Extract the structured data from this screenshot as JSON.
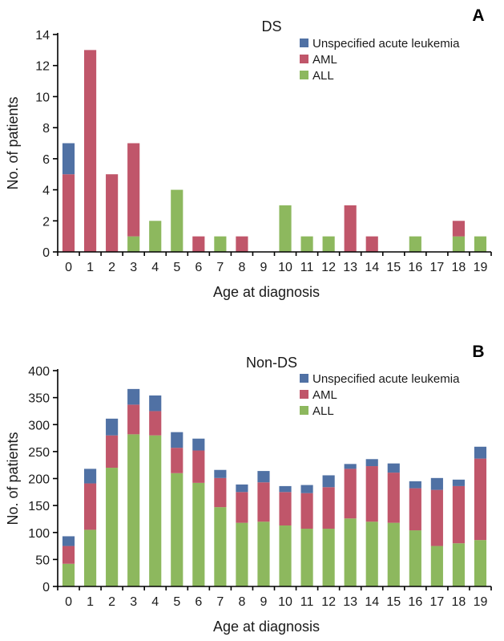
{
  "chart_data": [
    {
      "type": "bar",
      "stacked": true,
      "panel_label": "A",
      "title": "DS",
      "xlabel": "Age at diagnosis",
      "ylabel": "No. of patients",
      "ylim": [
        0,
        14
      ],
      "yticks": [
        0,
        2,
        4,
        6,
        8,
        10,
        12,
        14
      ],
      "grid": false,
      "legend_position": "top-right",
      "categories": [
        "0",
        "1",
        "2",
        "3",
        "4",
        "5",
        "6",
        "7",
        "8",
        "9",
        "10",
        "11",
        "12",
        "13",
        "14",
        "15",
        "16",
        "17",
        "18",
        "19"
      ],
      "series": [
        {
          "name": "ALL",
          "color": "#8db85e",
          "values": [
            0,
            0,
            0,
            1,
            2,
            4,
            0,
            1,
            0,
            0,
            3,
            1,
            1,
            0,
            0,
            0,
            1,
            0,
            1,
            1
          ]
        },
        {
          "name": "AML",
          "color": "#c0566a",
          "values": [
            5,
            13,
            5,
            6,
            0,
            0,
            1,
            0,
            1,
            0,
            0,
            0,
            0,
            3,
            1,
            0,
            0,
            0,
            1,
            0
          ]
        },
        {
          "name": "Unspecified acute leukemia",
          "color": "#5071a4",
          "values": [
            2,
            0,
            0,
            0,
            0,
            0,
            0,
            0,
            0,
            0,
            0,
            0,
            0,
            0,
            0,
            0,
            0,
            0,
            0,
            0
          ]
        }
      ]
    },
    {
      "type": "bar",
      "stacked": true,
      "panel_label": "B",
      "title": "Non-DS",
      "xlabel": "Age at diagnosis",
      "ylabel": "No. of patients",
      "ylim": [
        0,
        400
      ],
      "yticks": [
        0,
        50,
        100,
        150,
        200,
        250,
        300,
        350,
        400
      ],
      "grid": false,
      "legend_position": "top-right",
      "categories": [
        "0",
        "1",
        "2",
        "3",
        "4",
        "5",
        "6",
        "7",
        "8",
        "9",
        "10",
        "11",
        "12",
        "13",
        "14",
        "15",
        "16",
        "17",
        "18",
        "19"
      ],
      "series": [
        {
          "name": "ALL",
          "color": "#8db85e",
          "values": [
            42,
            105,
            220,
            282,
            280,
            210,
            192,
            147,
            118,
            120,
            113,
            107,
            107,
            126,
            120,
            118,
            104,
            75,
            80,
            86
          ]
        },
        {
          "name": "AML",
          "color": "#c0566a",
          "values": [
            33,
            86,
            60,
            55,
            45,
            47,
            60,
            54,
            57,
            73,
            62,
            66,
            77,
            92,
            103,
            93,
            78,
            104,
            106,
            151
          ]
        },
        {
          "name": "Unspecified acute leukemia",
          "color": "#5071a4",
          "values": [
            18,
            27,
            31,
            29,
            29,
            29,
            22,
            15,
            14,
            21,
            11,
            15,
            22,
            9,
            13,
            17,
            13,
            22,
            12,
            22
          ]
        }
      ]
    }
  ]
}
